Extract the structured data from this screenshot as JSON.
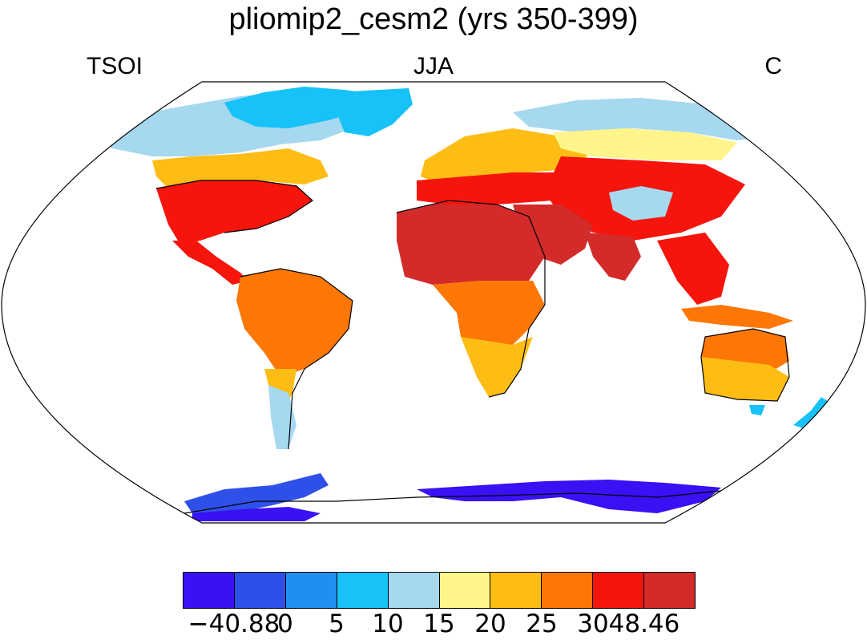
{
  "title": "pliomip2_cesm2 (yrs 350-399)",
  "labels": {
    "left": "TSOI",
    "center": "JJA",
    "right": "C"
  },
  "colorbar": {
    "colors": [
      "#3a10f5",
      "#2f50e8",
      "#1f8ff2",
      "#16c2f7",
      "#a6d8f0",
      "#fff58a",
      "#fdbd15",
      "#fd7707",
      "#f5150c",
      "#d32a2a"
    ],
    "tick_labels": [
      "−40.88",
      "0",
      "5",
      "10",
      "15",
      "20",
      "25",
      "30",
      "48.46"
    ],
    "tick_values": [
      -40.88,
      0,
      5,
      10,
      15,
      20,
      25,
      30,
      48.46
    ]
  },
  "land_colors": {
    "tropics": "#d32a2a",
    "hot": "#f5150c",
    "warm": "#fd7707",
    "mild": "#fdbd15",
    "cool": "#fff58a",
    "cold": "#a6d8f0",
    "colder": "#16c2f7",
    "freezing": "#1f8ff2",
    "polar": "#2f50e8",
    "deep-polar": "#3a10f5"
  }
}
